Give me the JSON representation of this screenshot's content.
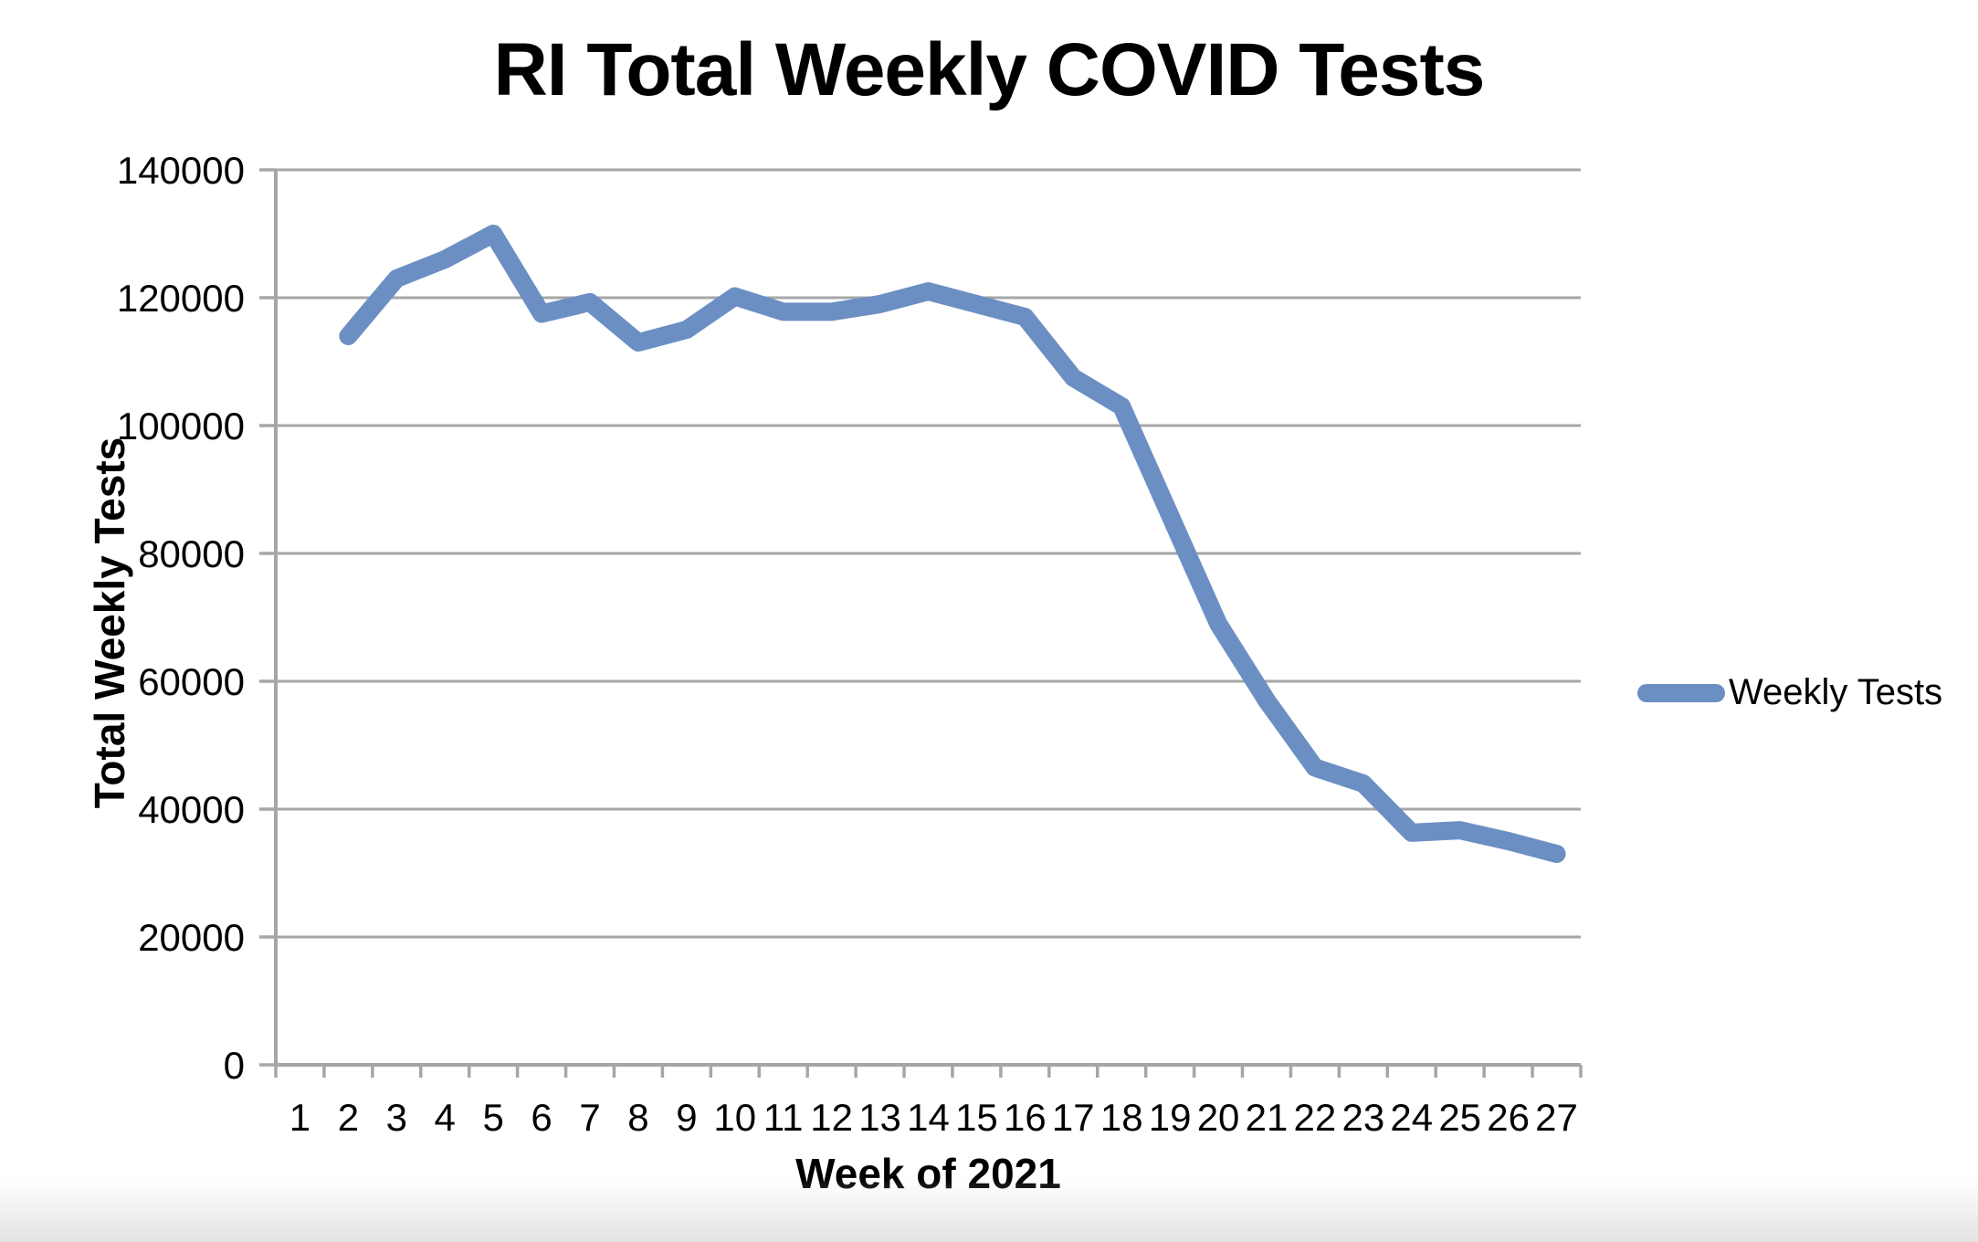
{
  "page": {
    "background": "#ffffff"
  },
  "chart_data": {
    "type": "line",
    "title": "RI Total Weekly COVID Tests",
    "xlabel": "Week of 2021",
    "ylabel": "Total Weekly Tests",
    "categories": [
      1,
      2,
      3,
      4,
      5,
      6,
      7,
      8,
      9,
      10,
      11,
      12,
      13,
      14,
      15,
      16,
      17,
      18,
      19,
      20,
      21,
      22,
      23,
      24,
      25,
      26,
      27
    ],
    "series": [
      {
        "name": "Weekly Tests",
        "values": [
          null,
          114000,
          123000,
          126000,
          130000,
          117500,
          119300,
          113000,
          115000,
          120200,
          117800,
          117800,
          119000,
          121000,
          119000,
          117000,
          107500,
          103000,
          86000,
          69000,
          57000,
          46500,
          44000,
          36300,
          36700,
          35000,
          33000
        ],
        "color": "#6b8fc3"
      }
    ],
    "ylim": [
      0,
      140000
    ],
    "y_tick_step": 20000,
    "y_tick_labels": [
      "0",
      "20000",
      "40000",
      "60000",
      "80000",
      "100000",
      "120000",
      "140000"
    ],
    "grid": "horizontal",
    "gridline_color": "#a6a6a6",
    "axis_color": "#a6a6a6",
    "tick_label_color": "#000000",
    "legend_position": "right"
  },
  "legend": {
    "label": "Weekly Tests",
    "swatch_color": "#6b8fc3"
  }
}
